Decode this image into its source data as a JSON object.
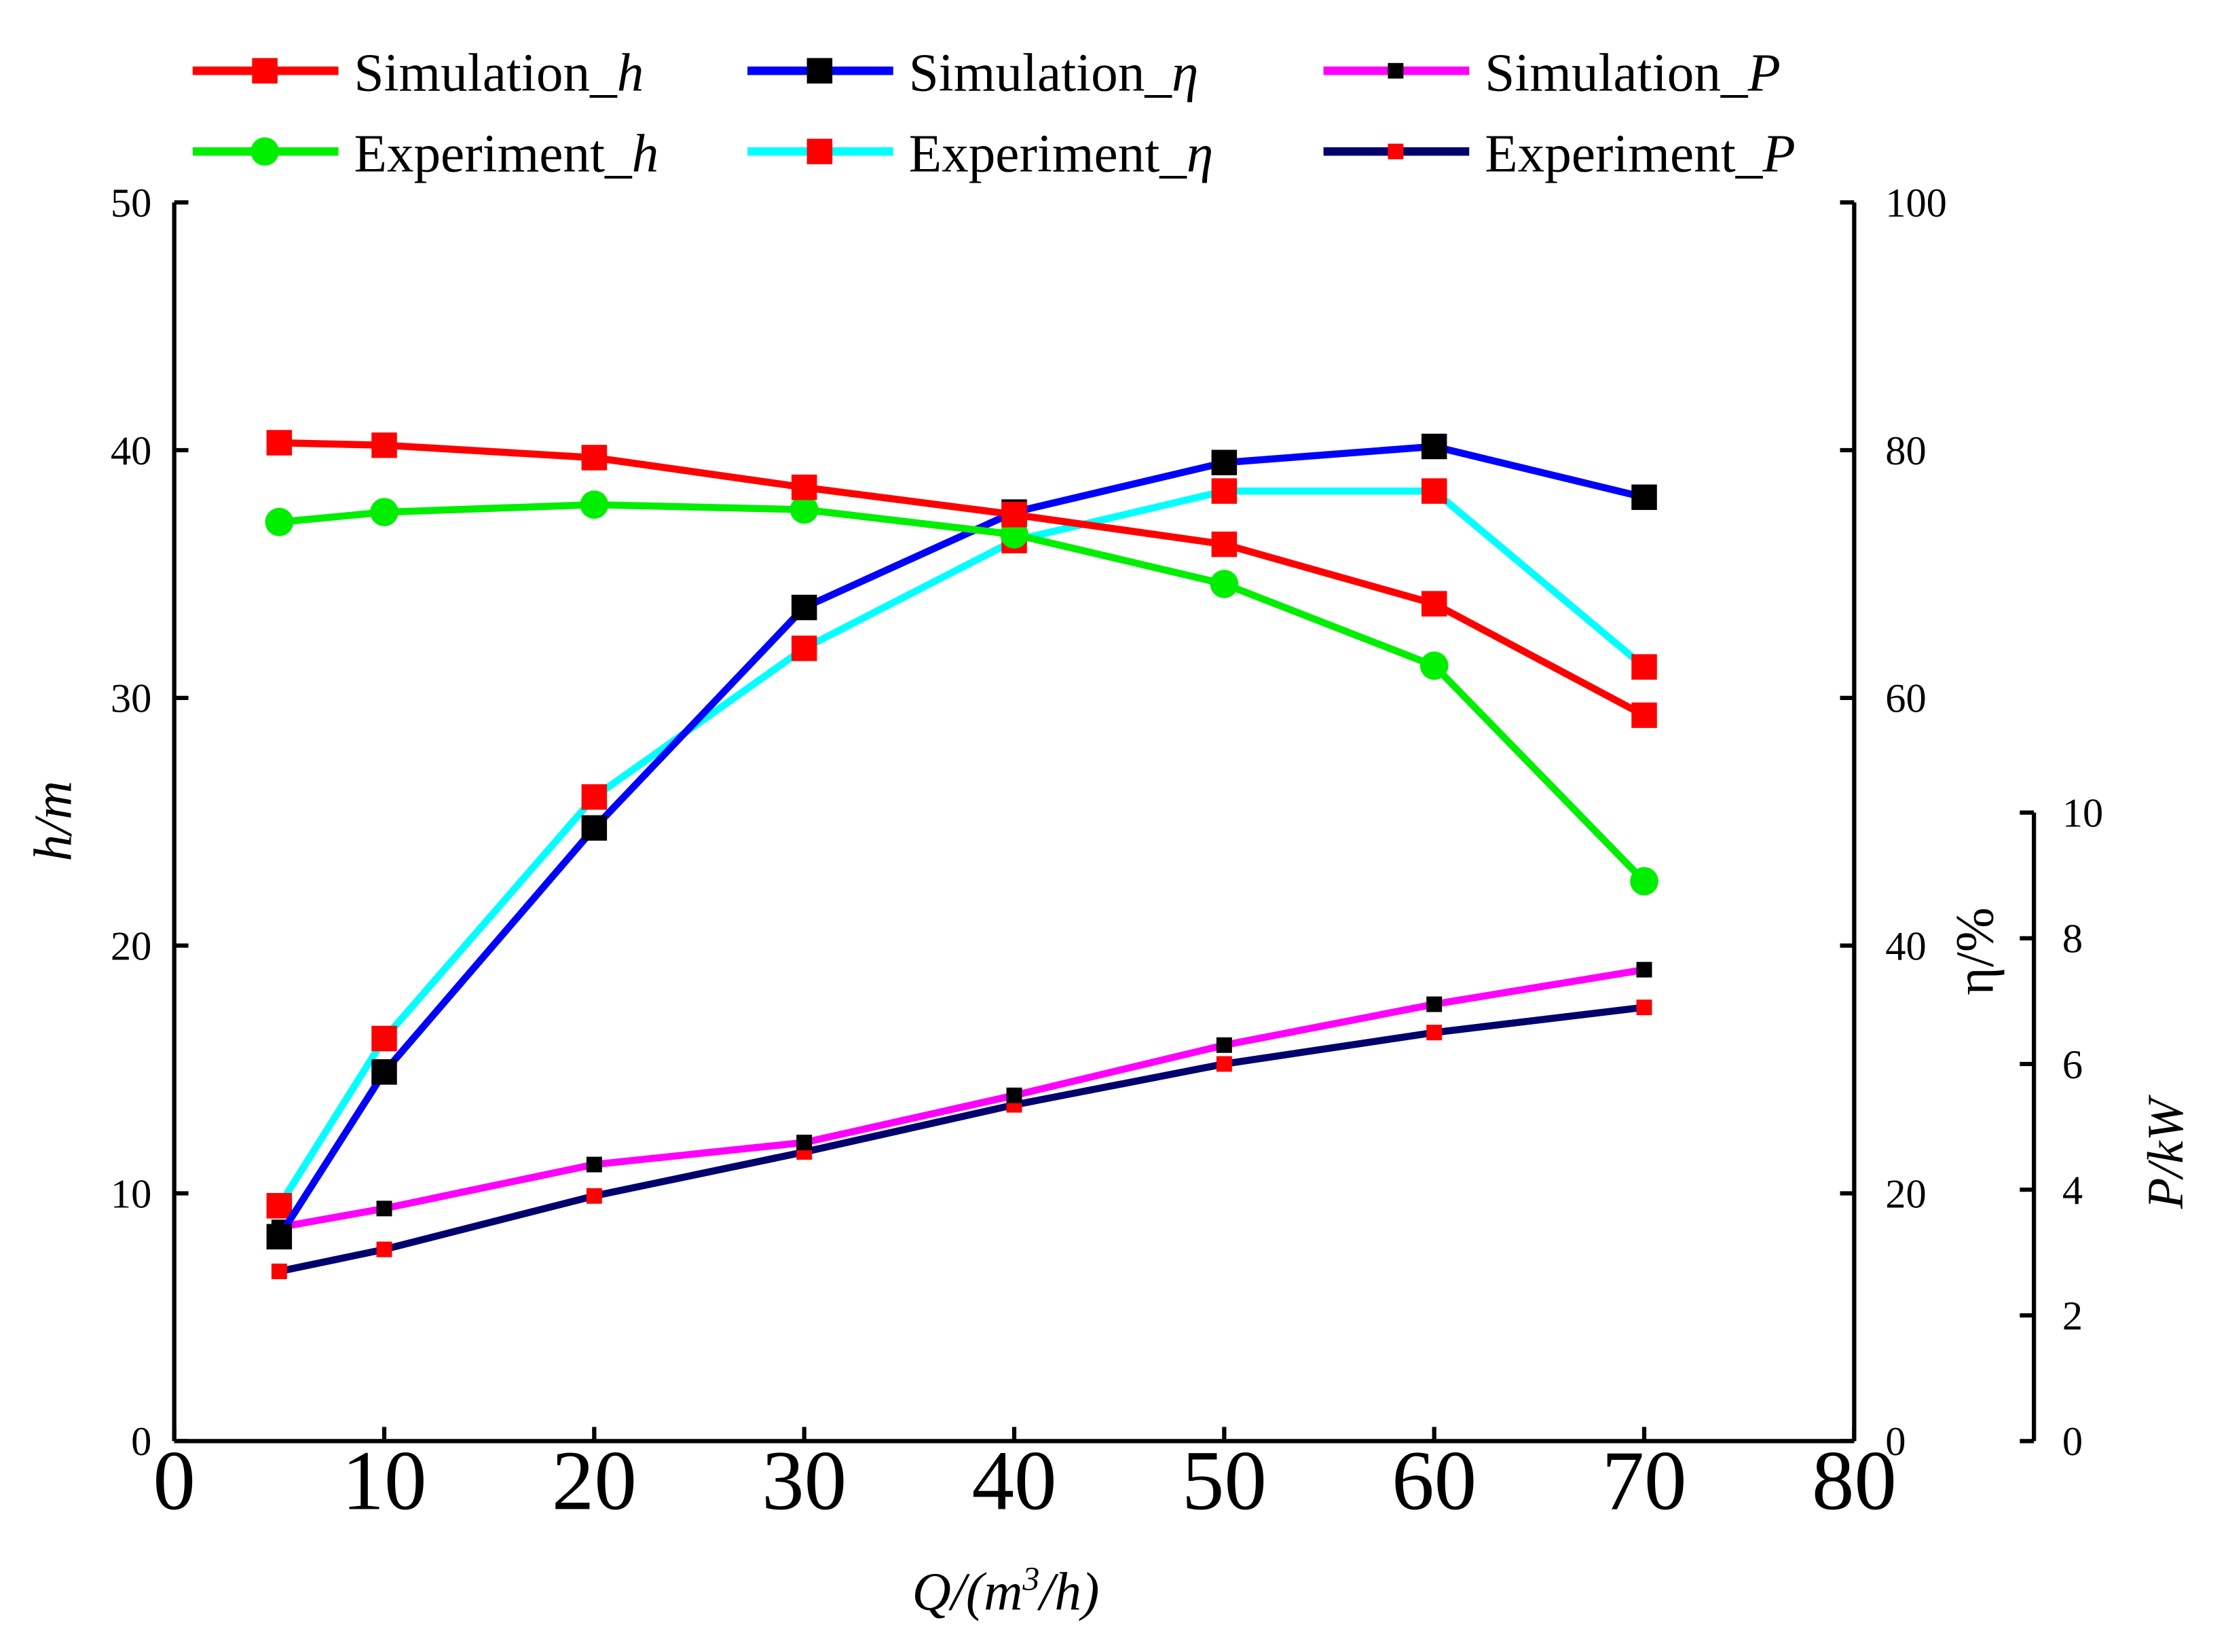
{
  "chart_data": {
    "type": "line",
    "x": [
      5,
      10,
      20,
      30,
      40,
      50,
      60,
      70
    ],
    "xlabel": {
      "base": "Q/(m",
      "sup": "3",
      "tail": "/h)"
    },
    "xlim": [
      0,
      80
    ],
    "xticks": [
      "0",
      "10",
      "20",
      "30",
      "40",
      "50",
      "60",
      "70",
      "80"
    ],
    "axes": {
      "h": {
        "label_var": "h",
        "label_unit": "/m",
        "lim": [
          0,
          50
        ],
        "ticks": [
          "0",
          "10",
          "20",
          "30",
          "40",
          "50"
        ]
      },
      "eta": {
        "label": "η/%",
        "lim": [
          0,
          100
        ],
        "ticks": [
          "0",
          "20",
          "40",
          "60",
          "80",
          "100"
        ]
      },
      "P": {
        "label_var": "P",
        "label_unit": "/kW",
        "lim": [
          0,
          10
        ],
        "ticks": [
          "0",
          "2",
          "4",
          "6",
          "8",
          "10"
        ]
      }
    },
    "legend_position": "top",
    "series": [
      {
        "name": "Simulation_h",
        "name_prefix": "Simulation_",
        "name_var": "h",
        "axis": "h",
        "color": "#ff0000",
        "marker": "square",
        "marker_color": "#ff0000",
        "values": [
          40.3,
          40.2,
          39.7,
          38.5,
          37.4,
          36.2,
          33.8,
          29.3
        ]
      },
      {
        "name": "Simulation_η",
        "name_prefix": "Simulation_",
        "name_var": "η",
        "axis": "eta",
        "color": "#0000ff",
        "marker": "square",
        "marker_color": "#000000",
        "values": [
          16.5,
          29.8,
          49.5,
          67.3,
          75,
          79,
          80.3,
          76.2
        ]
      },
      {
        "name": "Simulation_P",
        "name_prefix": "Simulation_",
        "name_var": "P",
        "axis": "P",
        "color": "#ff00ff",
        "marker": "small-square",
        "marker_color": "#000000",
        "values": [
          3.4,
          3.7,
          4.4,
          4.75,
          5.5,
          6.3,
          6.95,
          7.5
        ]
      },
      {
        "name": "Experiment_h",
        "name_prefix": "Experiment_",
        "name_var": "h",
        "axis": "h",
        "color": "#00ee00",
        "marker": "circle",
        "marker_color": "#00ee00",
        "values": [
          37.1,
          37.5,
          37.8,
          37.6,
          36.6,
          34.6,
          31.3,
          22.6
        ]
      },
      {
        "name": "Experiment_η",
        "name_prefix": "Experiment_",
        "name_var": "η",
        "axis": "eta",
        "color": "#00ffff",
        "marker": "square",
        "marker_color": "#ff0000",
        "values": [
          19,
          32.5,
          52,
          64,
          72.7,
          76.7,
          76.7,
          62.5
        ]
      },
      {
        "name": "Experiment_P",
        "name_prefix": "Experiment_",
        "name_var": "P",
        "axis": "P",
        "color": "#00006e",
        "marker": "small-square",
        "marker_color": "#ff0000",
        "values": [
          2.7,
          3.05,
          3.9,
          4.6,
          5.35,
          6,
          6.5,
          6.9
        ]
      }
    ]
  }
}
